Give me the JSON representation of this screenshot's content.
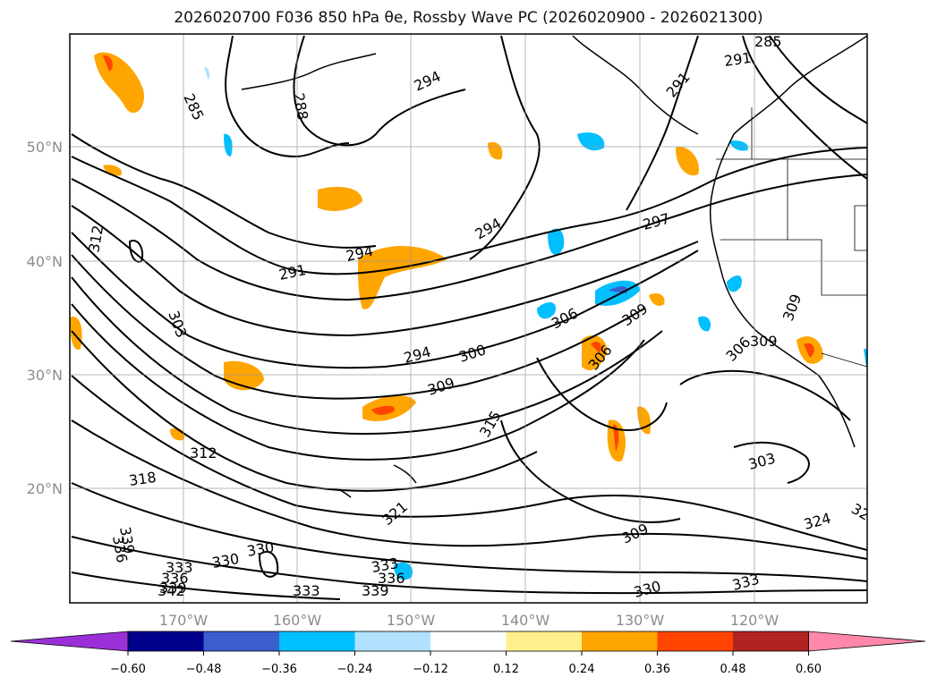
{
  "title": "2026020700 F036 850 hPa θe, Rossby Wave PC (2026020900 - 2026021300)",
  "map": {
    "lon_labels": [
      "170°W",
      "160°W",
      "150°W",
      "140°W",
      "130°W",
      "120°W"
    ],
    "lat_labels": [
      "50°N",
      "40°N",
      "30°N",
      "20°N"
    ],
    "contour_labels": [
      {
        "text": "285"
      },
      {
        "text": "285"
      },
      {
        "text": "288"
      },
      {
        "text": "294"
      },
      {
        "text": "291"
      },
      {
        "text": "291"
      },
      {
        "text": "294"
      },
      {
        "text": "297"
      },
      {
        "text": "312"
      },
      {
        "text": "291"
      },
      {
        "text": "294"
      },
      {
        "text": "303"
      },
      {
        "text": "306"
      },
      {
        "text": "309"
      },
      {
        "text": "294"
      },
      {
        "text": "300"
      },
      {
        "text": "309"
      },
      {
        "text": "306"
      },
      {
        "text": "309"
      },
      {
        "text": "306"
      },
      {
        "text": "309"
      },
      {
        "text": "315"
      },
      {
        "text": "312"
      },
      {
        "text": "318"
      },
      {
        "text": "303"
      },
      {
        "text": "321"
      },
      {
        "text": "309"
      },
      {
        "text": "324"
      },
      {
        "text": "32"
      },
      {
        "text": "330"
      },
      {
        "text": "330"
      },
      {
        "text": "333"
      },
      {
        "text": "336"
      },
      {
        "text": "339"
      },
      {
        "text": "342"
      },
      {
        "text": "333"
      },
      {
        "text": "333"
      },
      {
        "text": "336"
      },
      {
        "text": "339"
      },
      {
        "text": "330"
      },
      {
        "text": "333"
      },
      {
        "text": "339"
      },
      {
        "text": "336"
      }
    ]
  },
  "colorbar": {
    "tick_labels": [
      "−0.60",
      "−0.48",
      "−0.36",
      "−0.24",
      "−0.12",
      "0.12",
      "0.24",
      "0.36",
      "0.48",
      "0.60"
    ],
    "colors": [
      "#9b30d9",
      "#00008b",
      "#3a5fcd",
      "#00bfff",
      "#b0e2ff",
      "#ffffff",
      "#fff08c",
      "#ffa500",
      "#ff4500",
      "#b22222",
      "#ff88aa"
    ]
  }
}
